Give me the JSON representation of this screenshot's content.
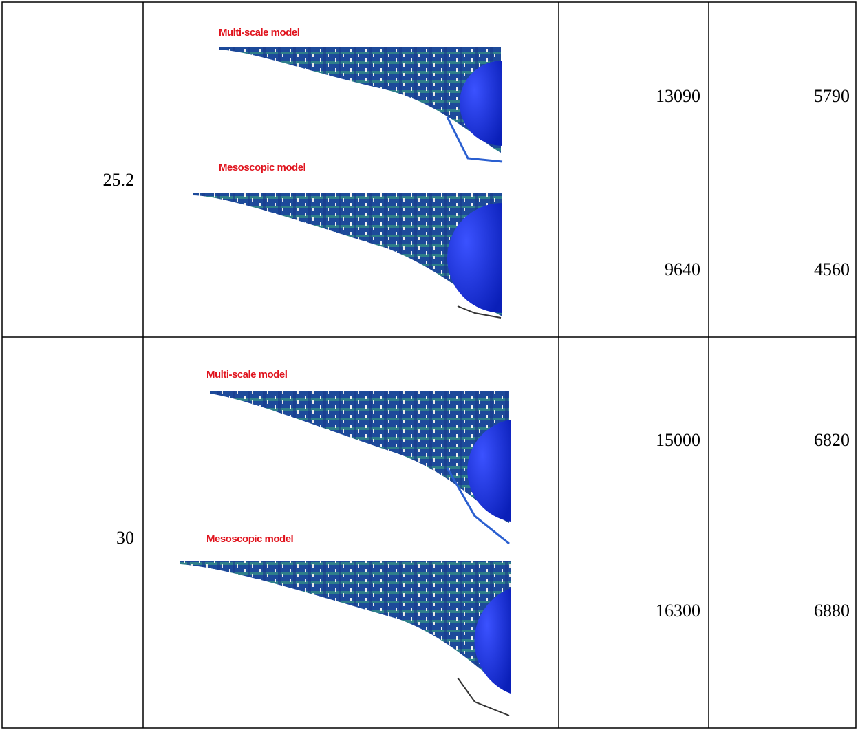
{
  "table": {
    "rows": [
      {
        "label": 25.2,
        "figures": [
          {
            "caption": "Multi-scale model",
            "values": [
              13090,
              5790
            ]
          },
          {
            "caption": "Mesoscopic model",
            "values": [
              9640,
              4560
            ]
          }
        ]
      },
      {
        "label": 30,
        "figures": [
          {
            "caption": "Multi-scale model",
            "values": [
              15000,
              6820
            ]
          },
          {
            "caption": "Mesoscopic model",
            "values": [
              16300,
              6880
            ]
          }
        ]
      }
    ]
  }
}
